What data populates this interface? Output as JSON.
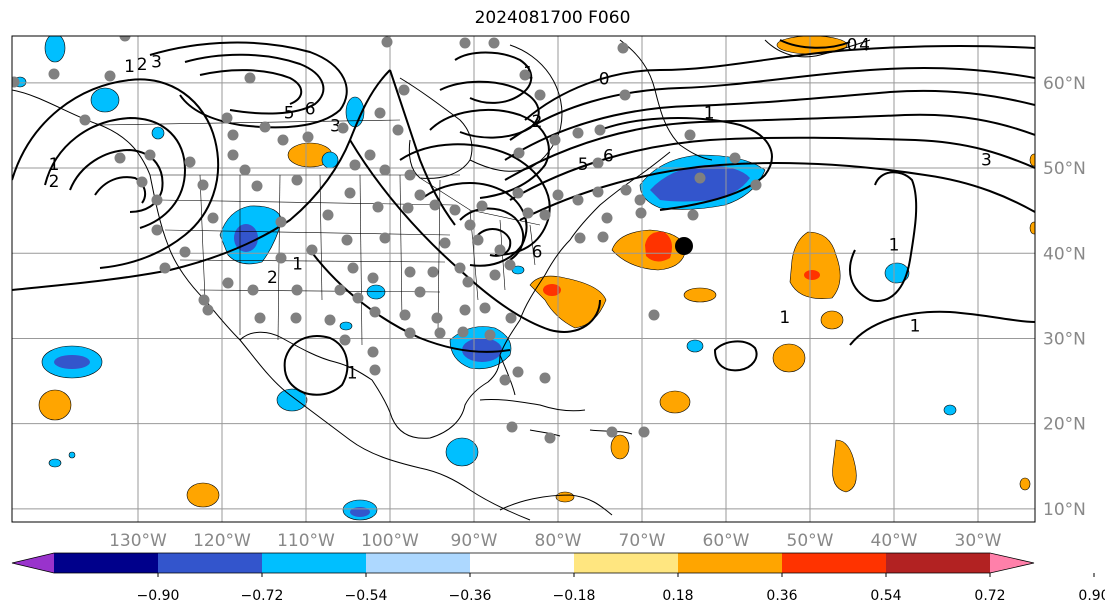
{
  "title": "2024081700 F060",
  "lon_labels": [
    {
      "lon": -130,
      "text": "130°W"
    },
    {
      "lon": -120,
      "text": "120°W"
    },
    {
      "lon": -110,
      "text": "110°W"
    },
    {
      "lon": -100,
      "text": "100°W"
    },
    {
      "lon": -90,
      "text": "90°W"
    },
    {
      "lon": -80,
      "text": "80°W"
    },
    {
      "lon": -70,
      "text": "70°W"
    },
    {
      "lon": -60,
      "text": "60°W"
    },
    {
      "lon": -50,
      "text": "50°W"
    },
    {
      "lon": -40,
      "text": "40°W"
    },
    {
      "lon": -30,
      "text": "30°W"
    }
  ],
  "lat_labels": [
    {
      "lat": 60,
      "text": "60°N"
    },
    {
      "lat": 50,
      "text": "50°N"
    },
    {
      "lat": 40,
      "text": "40°N"
    },
    {
      "lat": 30,
      "text": "30°N"
    },
    {
      "lat": 20,
      "text": "20°N"
    },
    {
      "lat": 10,
      "text": "10°N"
    }
  ],
  "colorbar": {
    "colors": [
      "#9933cc",
      "#00008b",
      "#3355cc",
      "#00bfff",
      "#add8ff",
      "#ffffff",
      "#ffe680",
      "#ffa500",
      "#ff3300",
      "#b22222",
      "#ff80aa"
    ],
    "labels": [
      "−0.90",
      "−0.72",
      "−0.54",
      "−0.36",
      "−0.18",
      "0.18",
      "0.36",
      "0.54",
      "0.72",
      "0.90"
    ]
  },
  "contour_labels": [
    {
      "lon": -131,
      "lat": 62,
      "text": "1"
    },
    {
      "lon": -129.5,
      "lat": 62.2,
      "text": "2"
    },
    {
      "lon": -127.8,
      "lat": 62.5,
      "text": "3"
    },
    {
      "lon": -112,
      "lat": 56.5,
      "text": "5"
    },
    {
      "lon": -109.5,
      "lat": 57,
      "text": "6"
    },
    {
      "lon": -106.5,
      "lat": 55,
      "text": "3"
    },
    {
      "lon": -111,
      "lat": 38.8,
      "text": "1"
    },
    {
      "lon": -114,
      "lat": 37.2,
      "text": "2"
    },
    {
      "lon": -83.5,
      "lat": 61.2,
      "text": "1"
    },
    {
      "lon": -82.5,
      "lat": 55.5,
      "text": "2"
    },
    {
      "lon": -74.5,
      "lat": 60.5,
      "text": "0"
    },
    {
      "lon": -77,
      "lat": 50.5,
      "text": "5"
    },
    {
      "lon": -74,
      "lat": 51.5,
      "text": "6"
    },
    {
      "lon": -82.5,
      "lat": 40.2,
      "text": "6"
    },
    {
      "lon": -62,
      "lat": 56.5,
      "text": "1"
    },
    {
      "lon": -45,
      "lat": 64.5,
      "text": "0"
    },
    {
      "lon": -43.5,
      "lat": 64.5,
      "text": "4"
    },
    {
      "lon": -29,
      "lat": 51,
      "text": "3"
    },
    {
      "lon": -53,
      "lat": 32.5,
      "text": "1"
    },
    {
      "lon": -40,
      "lat": 41,
      "text": "1"
    },
    {
      "lon": -37.5,
      "lat": 31.5,
      "text": "1"
    },
    {
      "lon": -140,
      "lat": 50.5,
      "text": "1"
    },
    {
      "lon": -140,
      "lat": 48.5,
      "text": "2"
    },
    {
      "lon": -104.5,
      "lat": 26,
      "text": "1"
    }
  ]
}
